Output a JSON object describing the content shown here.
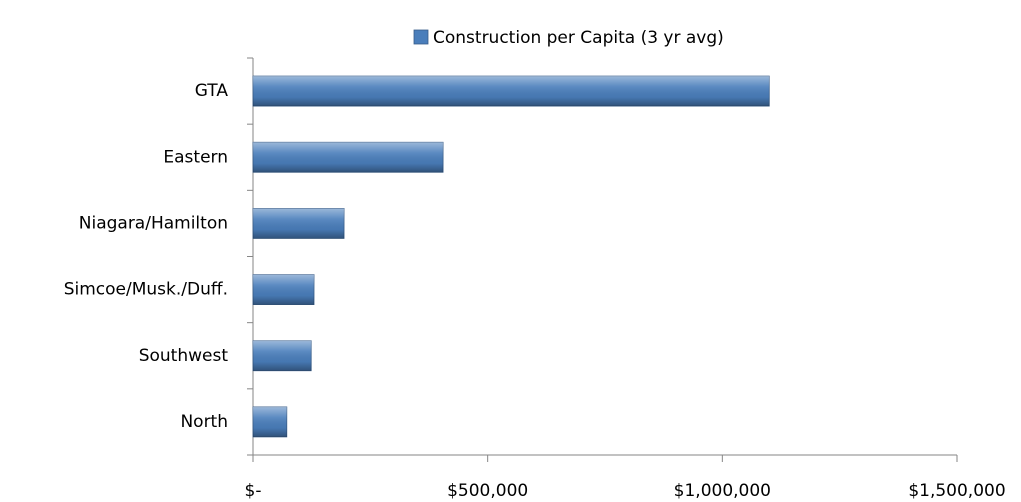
{
  "chart_data": {
    "type": "hbar",
    "categories": [
      "GTA",
      "Eastern",
      "Niagara/Hamilton",
      "Simcoe/Musk./Duff.",
      "Southwest",
      "North"
    ],
    "series": [
      {
        "name": "Construction per Capita (3 yr avg)",
        "color": "#4a7ebb",
        "values": [
          1100000,
          405000,
          194000,
          130000,
          124000,
          72000
        ]
      }
    ],
    "xlim": [
      0,
      1500000
    ],
    "xticks": [
      {
        "value": 0,
        "label": "$-"
      },
      {
        "value": 500000,
        "label": "$500,000"
      },
      {
        "value": 1000000,
        "label": "$1,000,000"
      },
      {
        "value": 1500000,
        "label": "$1,500,000"
      }
    ],
    "grid": false,
    "legend": "top"
  }
}
